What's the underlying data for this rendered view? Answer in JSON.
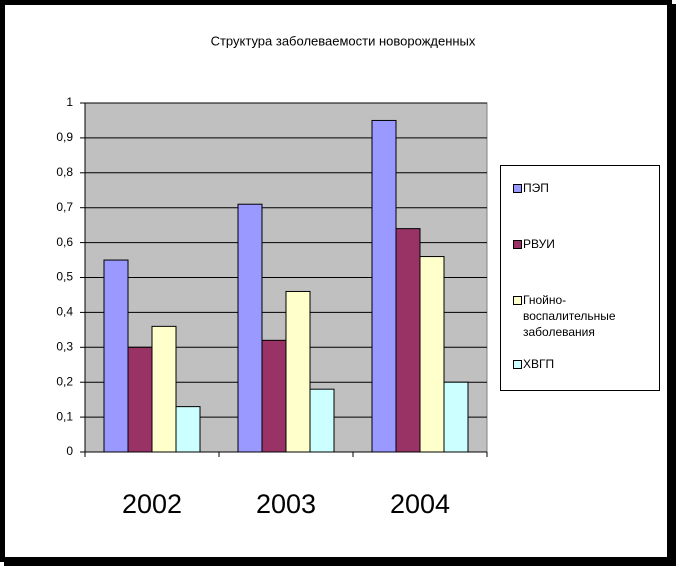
{
  "chart_data": {
    "type": "bar",
    "title": "Структура заболеваемости новорожденных",
    "categories": [
      "2002",
      "2003",
      "2004"
    ],
    "series": [
      {
        "name": "ПЭП",
        "color": "#9999ff",
        "values": [
          0.55,
          0.71,
          0.95
        ]
      },
      {
        "name": "РВУИ",
        "color": "#993366",
        "values": [
          0.3,
          0.32,
          0.64
        ]
      },
      {
        "name": "Гнойно-воспалительные заболевания",
        "color": "#ffffcc",
        "values": [
          0.36,
          0.46,
          0.56
        ]
      },
      {
        "name": "ХВГП",
        "color": "#ccffff",
        "values": [
          0.13,
          0.18,
          0.2
        ]
      }
    ],
    "ylim": [
      0,
      1
    ],
    "yticks": [
      0,
      {
        "value": 0.1,
        "label": "0,1"
      },
      {
        "value": 0.2,
        "label": "0,2"
      },
      {
        "value": 0.3,
        "label": "0,3"
      },
      {
        "value": 0.4,
        "label": "0,4"
      },
      {
        "value": 0.5,
        "label": "0,5"
      },
      {
        "value": 0.6,
        "label": "0,6"
      },
      {
        "value": 0.7,
        "label": "0,7"
      },
      {
        "value": 0.8,
        "label": "0,8"
      },
      {
        "value": 0.9,
        "label": "0,9"
      },
      1
    ],
    "grid": true,
    "legend": "right"
  }
}
